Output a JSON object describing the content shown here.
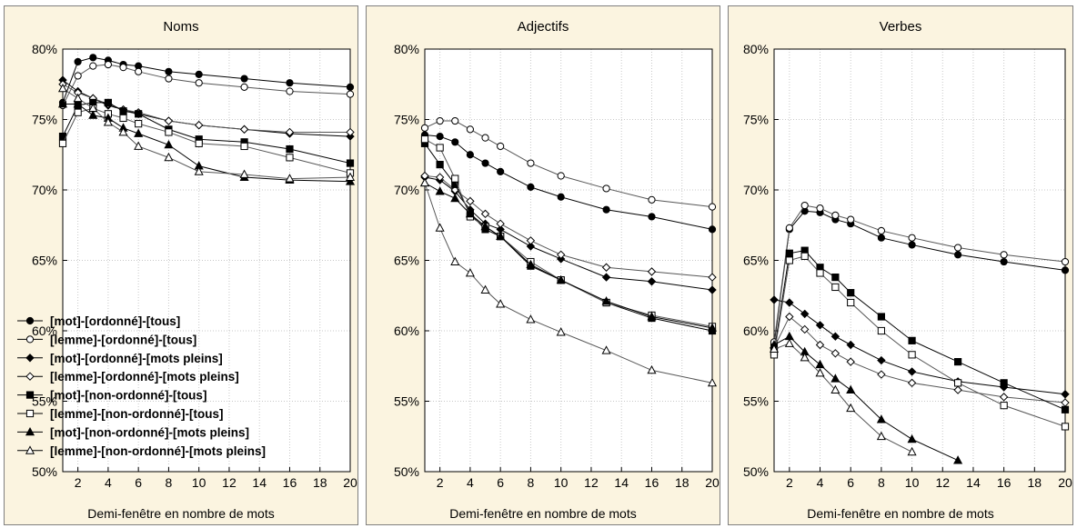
{
  "chart_data": [
    {
      "type": "line",
      "title": "Noms",
      "xlabel": "Demi-fenêtre en nombre de mots",
      "ylabel": "",
      "xlim": [
        1,
        20
      ],
      "ylim": [
        50,
        80
      ],
      "xticks": [
        2,
        4,
        6,
        8,
        10,
        12,
        14,
        16,
        18,
        20
      ],
      "yticks": [
        "50%",
        "55%",
        "60%",
        "65%",
        "70%",
        "75%",
        "80%"
      ],
      "legend_position": "bottom-left",
      "series": [
        {
          "name": "[mot]-[ordonné]-[tous]",
          "marker": "circle",
          "fill": "#000000",
          "x": [
            1,
            2,
            3,
            4,
            5,
            6,
            8,
            10,
            13,
            16,
            20
          ],
          "y": [
            76.2,
            79.1,
            79.4,
            79.2,
            78.9,
            78.8,
            78.4,
            78.2,
            77.9,
            77.6,
            77.3
          ]
        },
        {
          "name": "[lemme]-[ordonné]-[tous]",
          "marker": "circle",
          "fill": "#ffffff",
          "x": [
            1,
            2,
            3,
            4,
            5,
            6,
            8,
            10,
            13,
            16,
            20
          ],
          "y": [
            76.0,
            78.1,
            78.8,
            78.9,
            78.7,
            78.4,
            77.9,
            77.6,
            77.3,
            77.0,
            76.8
          ]
        },
        {
          "name": "[mot]-[ordonné]-[mots pleins]",
          "marker": "diamond",
          "fill": "#000000",
          "x": [
            1,
            2,
            3,
            4,
            5,
            6,
            8,
            10,
            13,
            16,
            20
          ],
          "y": [
            77.8,
            77.0,
            76.5,
            76.0,
            75.7,
            75.4,
            74.9,
            74.6,
            74.3,
            74.0,
            73.8
          ]
        },
        {
          "name": "[lemme]-[ordonné]-[mots pleins]",
          "marker": "diamond",
          "fill": "#ffffff",
          "x": [
            1,
            2,
            3,
            4,
            5,
            6,
            8,
            10,
            13,
            16,
            20
          ],
          "y": [
            77.5,
            76.9,
            76.5,
            76.1,
            75.7,
            75.5,
            74.9,
            74.6,
            74.3,
            74.1,
            74.1
          ]
        },
        {
          "name": "[mot]-[non-ordonné]-[tous]",
          "marker": "square",
          "fill": "#000000",
          "x": [
            1,
            2,
            3,
            4,
            5,
            6,
            8,
            10,
            13,
            16,
            20
          ],
          "y": [
            73.8,
            76.0,
            76.2,
            76.2,
            75.6,
            75.4,
            74.3,
            73.6,
            73.4,
            72.9,
            71.9
          ]
        },
        {
          "name": "[lemme]-[non-ordonné]-[tous]",
          "marker": "square",
          "fill": "#ffffff",
          "x": [
            1,
            2,
            3,
            4,
            5,
            6,
            8,
            10,
            13,
            16,
            20
          ],
          "y": [
            73.3,
            75.5,
            75.8,
            75.4,
            75.1,
            74.7,
            74.1,
            73.3,
            73.1,
            72.3,
            71.2
          ]
        },
        {
          "name": "[mot]-[non-ordonné]-[mots pleins]",
          "marker": "triangle",
          "fill": "#000000",
          "x": [
            1,
            2,
            3,
            4,
            5,
            6,
            8,
            10,
            13,
            16,
            20
          ],
          "y": [
            76.1,
            76.1,
            75.3,
            75.1,
            74.4,
            74.0,
            73.2,
            71.7,
            70.9,
            70.7,
            70.6
          ]
        },
        {
          "name": "[lemme]-[non-ordonné]-[mots pleins]",
          "marker": "triangle",
          "fill": "#ffffff",
          "x": [
            1,
            2,
            3,
            4,
            5,
            6,
            8,
            10,
            13,
            16,
            20
          ],
          "y": [
            77.2,
            76.5,
            75.8,
            74.8,
            74.1,
            73.1,
            72.3,
            71.3,
            71.1,
            70.8,
            70.9
          ]
        }
      ]
    },
    {
      "type": "line",
      "title": "Adjectifs",
      "xlabel": "Demi-fenêtre en nombre de mots",
      "ylabel": "",
      "xlim": [
        1,
        20
      ],
      "ylim": [
        50,
        80
      ],
      "xticks": [
        2,
        4,
        6,
        8,
        10,
        12,
        14,
        16,
        18,
        20
      ],
      "yticks": [
        "50%",
        "55%",
        "60%",
        "65%",
        "70%",
        "75%",
        "80%"
      ],
      "series": [
        {
          "name": "[mot]-[ordonné]-[tous]",
          "marker": "circle",
          "fill": "#000000",
          "x": [
            1,
            2,
            3,
            4,
            5,
            6,
            8,
            10,
            13,
            16,
            20
          ],
          "y": [
            73.9,
            73.8,
            73.4,
            72.5,
            71.9,
            71.3,
            70.2,
            69.5,
            68.6,
            68.1,
            67.2
          ]
        },
        {
          "name": "[lemme]-[ordonné]-[tous]",
          "marker": "circle",
          "fill": "#ffffff",
          "x": [
            1,
            2,
            3,
            4,
            5,
            6,
            8,
            10,
            13,
            16,
            20
          ],
          "y": [
            74.4,
            74.9,
            74.9,
            74.3,
            73.7,
            73.1,
            71.9,
            71.0,
            70.1,
            69.3,
            68.8
          ]
        },
        {
          "name": "[mot]-[ordonné]-[mots pleins]",
          "marker": "diamond",
          "fill": "#000000",
          "x": [
            1,
            2,
            3,
            4,
            5,
            6,
            8,
            10,
            13,
            16,
            20
          ],
          "y": [
            70.9,
            70.7,
            69.9,
            68.6,
            67.6,
            67.2,
            66.0,
            65.1,
            63.8,
            63.5,
            62.9
          ]
        },
        {
          "name": "[lemme]-[ordonné]-[mots pleins]",
          "marker": "diamond",
          "fill": "#ffffff",
          "x": [
            1,
            2,
            3,
            4,
            5,
            6,
            8,
            10,
            13,
            16,
            20
          ],
          "y": [
            71.0,
            70.9,
            70.0,
            69.2,
            68.3,
            67.6,
            66.4,
            65.4,
            64.5,
            64.2,
            63.8
          ]
        },
        {
          "name": "[mot]-[non-ordonné]-[tous]",
          "marker": "square",
          "fill": "#000000",
          "x": [
            1,
            2,
            3,
            4,
            5,
            6,
            8,
            10,
            13,
            16,
            20
          ],
          "y": [
            73.3,
            71.8,
            70.4,
            68.3,
            67.2,
            66.7,
            64.6,
            63.6,
            62.0,
            60.9,
            60.0
          ]
        },
        {
          "name": "[lemme]-[non-ordonné]-[tous]",
          "marker": "square",
          "fill": "#ffffff",
          "x": [
            1,
            2,
            3,
            4,
            5,
            6,
            8,
            10,
            13,
            16,
            20
          ],
          "y": [
            73.6,
            73.0,
            70.8,
            68.1,
            67.4,
            66.7,
            64.9,
            63.6,
            62.0,
            61.1,
            60.3
          ]
        },
        {
          "name": "[mot]-[non-ordonné]-[mots pleins]",
          "marker": "triangle",
          "fill": "#000000",
          "x": [
            1,
            2,
            3,
            4,
            5,
            6,
            8,
            10,
            13,
            16,
            20
          ],
          "y": [
            70.5,
            69.9,
            69.4,
            68.3,
            67.4,
            66.7,
            64.7,
            63.6,
            62.1,
            61.0,
            60.2
          ]
        },
        {
          "name": "[lemme]-[non-ordonné]-[mots pleins]",
          "marker": "triangle",
          "fill": "#ffffff",
          "x": [
            1,
            2,
            3,
            4,
            5,
            6,
            8,
            10,
            13,
            16,
            20
          ],
          "y": [
            70.5,
            67.3,
            64.9,
            64.1,
            62.9,
            61.9,
            60.8,
            59.9,
            58.6,
            57.2,
            56.3
          ]
        }
      ]
    },
    {
      "type": "line",
      "title": "Verbes",
      "xlabel": "Demi-fenêtre en nombre de mots",
      "ylabel": "",
      "xlim": [
        1,
        20
      ],
      "ylim": [
        50,
        80
      ],
      "xticks": [
        2,
        4,
        6,
        8,
        10,
        12,
        14,
        16,
        18,
        20
      ],
      "yticks": [
        "50%",
        "55%",
        "60%",
        "65%",
        "70%",
        "75%",
        "80%"
      ],
      "series": [
        {
          "name": "[mot]-[ordonné]-[tous]",
          "marker": "circle",
          "fill": "#000000",
          "x": [
            1,
            2,
            3,
            4,
            5,
            6,
            8,
            10,
            13,
            16,
            20
          ],
          "y": [
            59.0,
            67.2,
            68.5,
            68.4,
            67.9,
            67.6,
            66.6,
            66.1,
            65.4,
            64.9,
            64.3
          ]
        },
        {
          "name": "[lemme]-[ordonné]-[tous]",
          "marker": "circle",
          "fill": "#ffffff",
          "x": [
            1,
            2,
            3,
            4,
            5,
            6,
            8,
            10,
            13,
            16,
            20
          ],
          "y": [
            59.2,
            67.3,
            68.9,
            68.7,
            68.2,
            67.9,
            67.1,
            66.6,
            65.9,
            65.4,
            64.9
          ]
        },
        {
          "name": "[mot]-[ordonné]-[mots pleins]",
          "marker": "diamond",
          "fill": "#000000",
          "x": [
            1,
            2,
            3,
            4,
            5,
            6,
            8,
            10,
            13,
            16,
            20
          ],
          "y": [
            62.2,
            62.0,
            61.2,
            60.4,
            59.6,
            59.0,
            57.9,
            57.1,
            56.4,
            56.0,
            55.5
          ]
        },
        {
          "name": "[lemme]-[ordonné]-[mots pleins]",
          "marker": "diamond",
          "fill": "#ffffff",
          "x": [
            1,
            2,
            3,
            4,
            5,
            6,
            8,
            10,
            13,
            16,
            20
          ],
          "y": [
            58.8,
            61.0,
            60.1,
            59.0,
            58.4,
            57.8,
            56.9,
            56.3,
            55.8,
            55.3,
            54.9
          ]
        },
        {
          "name": "[mot]-[non-ordonné]-[tous]",
          "marker": "square",
          "fill": "#000000",
          "x": [
            1,
            2,
            3,
            4,
            5,
            6,
            8,
            10,
            13,
            16,
            20
          ],
          "y": [
            58.5,
            65.5,
            65.7,
            64.5,
            63.8,
            62.7,
            61.0,
            59.3,
            57.8,
            56.3,
            54.4
          ]
        },
        {
          "name": "[lemme]-[non-ordonné]-[tous]",
          "marker": "square",
          "fill": "#ffffff",
          "x": [
            1,
            2,
            3,
            4,
            5,
            6,
            8,
            10,
            13,
            16,
            20
          ],
          "y": [
            58.3,
            65.0,
            65.3,
            64.1,
            63.1,
            62.0,
            60.0,
            58.3,
            56.3,
            54.7,
            53.2
          ]
        },
        {
          "name": "[mot]-[non-ordonné]-[mots pleins]",
          "marker": "triangle",
          "fill": "#000000",
          "x": [
            1,
            2,
            3,
            4,
            5,
            6,
            8,
            10,
            13
          ],
          "y": [
            59.0,
            59.6,
            58.5,
            57.6,
            56.6,
            55.8,
            53.7,
            52.3,
            50.8
          ]
        },
        {
          "name": "[lemme]-[non-ordonné]-[mots pleins]",
          "marker": "triangle",
          "fill": "#ffffff",
          "x": [
            1,
            2,
            3,
            4,
            5,
            6,
            8,
            10
          ],
          "y": [
            58.7,
            59.1,
            58.1,
            57.0,
            55.8,
            54.5,
            52.5,
            51.4
          ]
        }
      ]
    }
  ]
}
